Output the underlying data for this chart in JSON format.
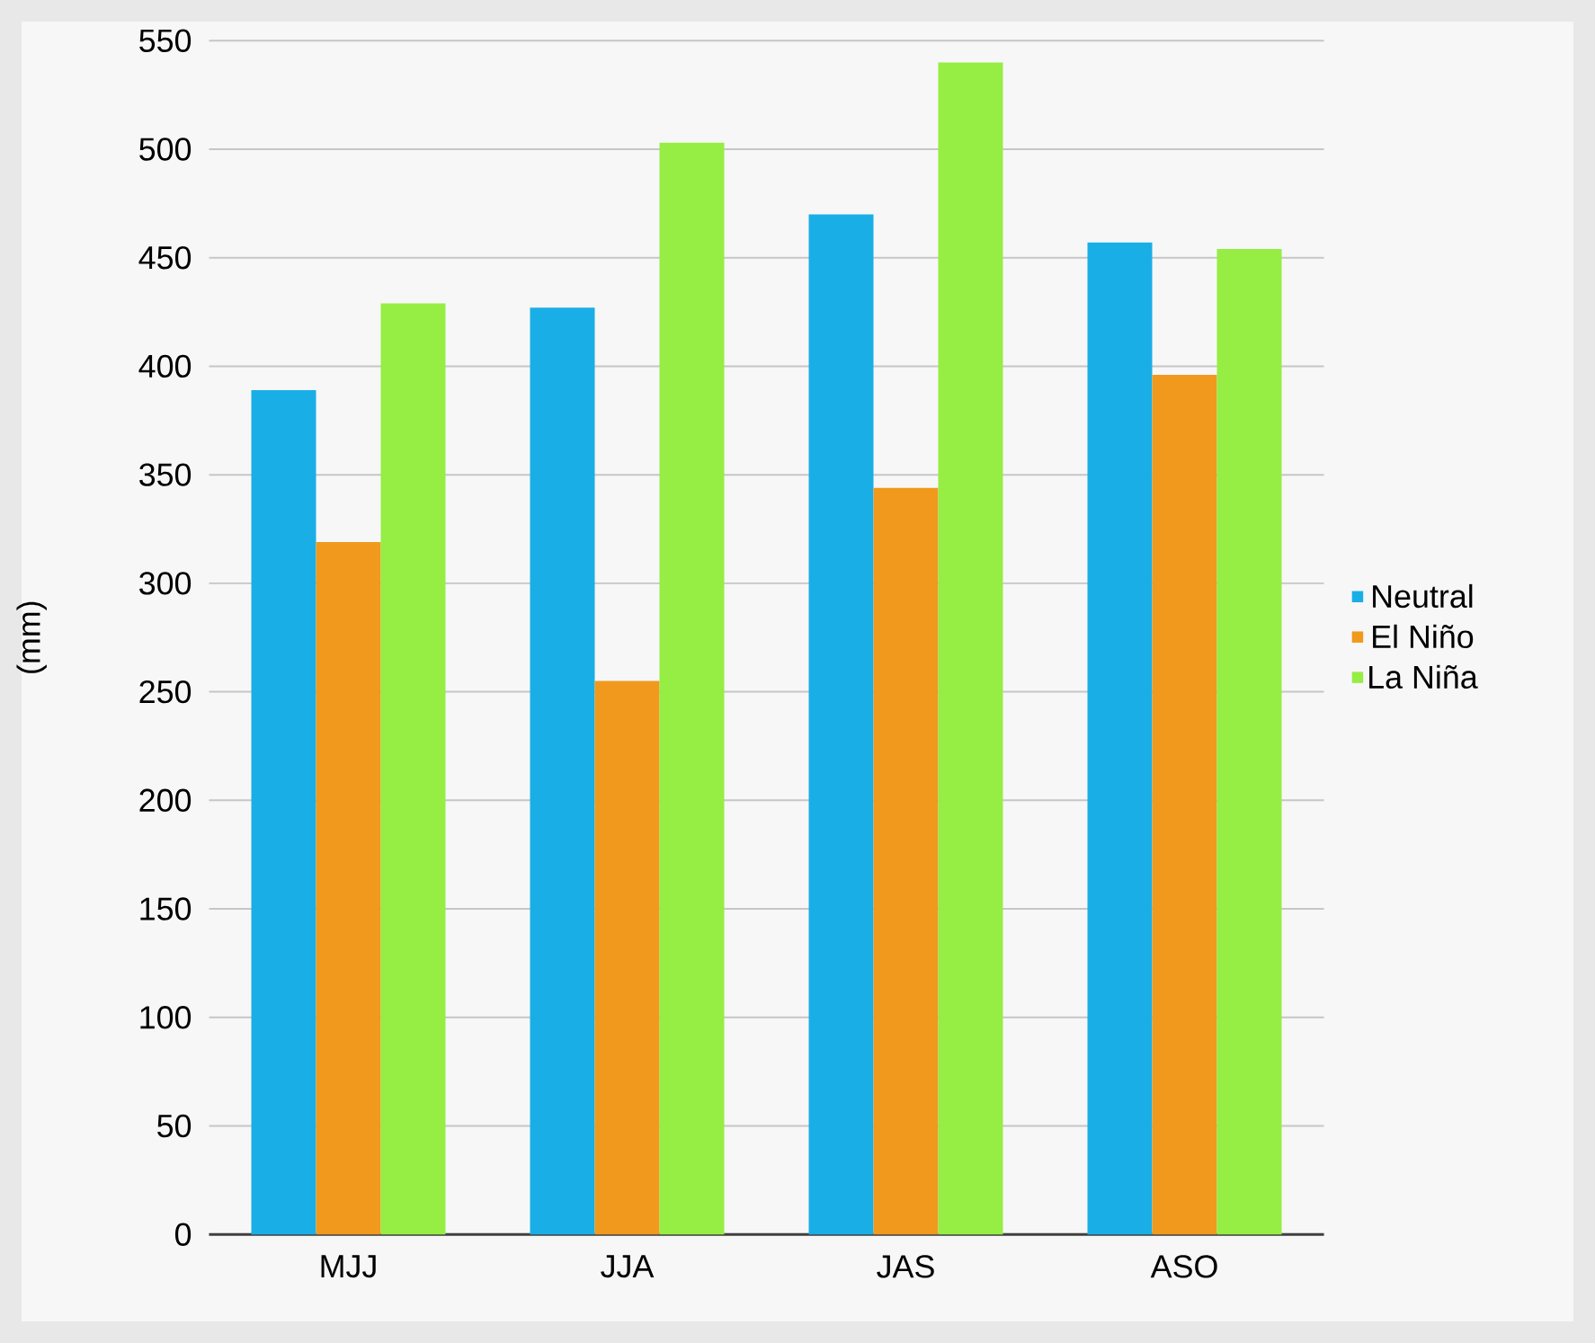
{
  "chart_data": {
    "type": "bar",
    "ylabel": "(mm)",
    "categories": [
      "MJJ",
      "JJA",
      "JAS",
      "ASO"
    ],
    "series": [
      {
        "name": "Neutral",
        "color": "#1aaee6",
        "values": [
          389,
          427,
          470,
          457
        ]
      },
      {
        "name": "El Niño",
        "color": "#f0991c",
        "values": [
          319,
          255,
          344,
          396
        ]
      },
      {
        "name": "La Niña",
        "color": "#96ed44",
        "values": [
          429,
          503,
          540,
          454
        ]
      }
    ],
    "ylim": [
      0,
      550
    ],
    "yticks": [
      0,
      50,
      100,
      150,
      200,
      250,
      300,
      350,
      400,
      450,
      500,
      550
    ],
    "grid": "y",
    "legend": "right"
  }
}
